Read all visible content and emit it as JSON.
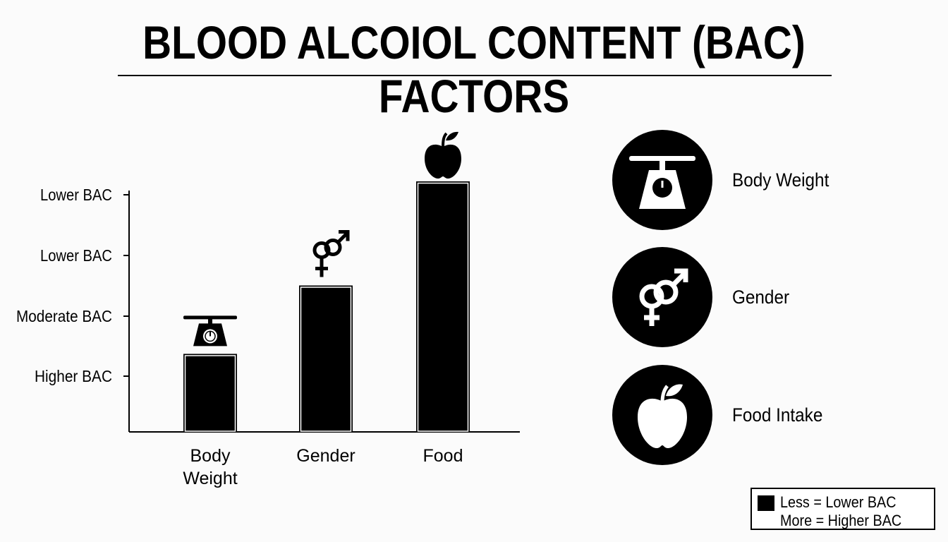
{
  "title": "BLOOD ALCOIOL CONTENT (BAC) FACTORS",
  "chart_data": {
    "type": "bar",
    "title": "BLOOD ALCOIOL CONTENT (BAC) FACTORS",
    "xlabel": "",
    "ylabel": "",
    "y_tick_labels": [
      "Higher BAC",
      "Moderate BAC",
      "Lower BAC",
      "Lower BAC"
    ],
    "y_ticks": [
      1,
      2,
      3,
      4
    ],
    "ylim": [
      0,
      4.2
    ],
    "categories": [
      {
        "lines": [
          "Body",
          "Weight"
        ],
        "icon": "scale-icon"
      },
      {
        "lines": [
          "Gender"
        ],
        "icon": "gender-icon"
      },
      {
        "lines": [
          "Food"
        ],
        "icon": "apple-icon"
      }
    ],
    "values": [
      1.3,
      2.45,
      4.2
    ],
    "bar_color": "#000000",
    "grid": false,
    "legend": "bottom-right"
  },
  "factors": [
    {
      "label": "Body Weight",
      "icon": "scale-icon"
    },
    {
      "label": "Gender",
      "icon": "gender-icon"
    },
    {
      "label": "Food Intake",
      "icon": "apple-icon"
    }
  ],
  "legend": {
    "line1": "Less = Lower BAC",
    "line2": "More = Higher BAC",
    "swatch_color": "#000000"
  }
}
